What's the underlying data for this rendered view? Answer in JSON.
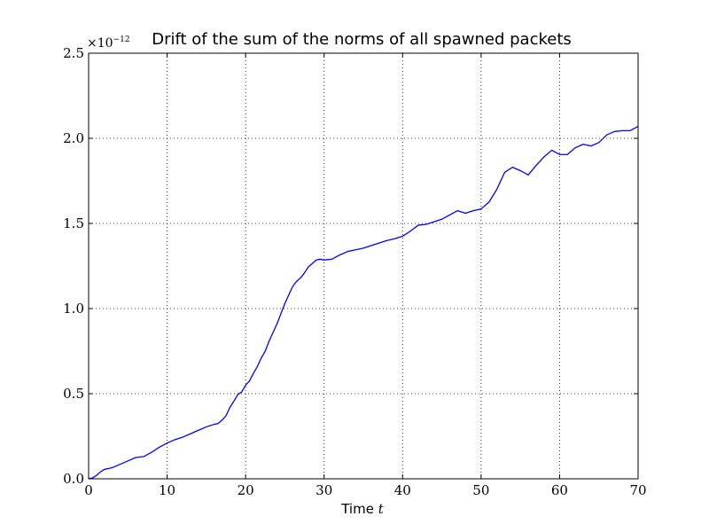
{
  "chart_data": {
    "type": "line",
    "title": "Drift of the sum of the norms of all spawned packets",
    "xlabel": "Time",
    "xlabel_var": "t",
    "ylabel": "",
    "y_offset_base": "×10",
    "y_offset_exp": "−12",
    "xlim": [
      0,
      70
    ],
    "ylim": [
      0,
      2.5
    ],
    "x_ticks": [
      0,
      10,
      20,
      30,
      40,
      50,
      60,
      70
    ],
    "x_tick_labels": [
      "0",
      "10",
      "20",
      "30",
      "40",
      "50",
      "60",
      "70"
    ],
    "y_ticks": [
      0,
      0.5,
      1.0,
      1.5,
      2.0,
      2.5
    ],
    "y_tick_labels": [
      "0.0",
      "0.5",
      "1.0",
      "1.5",
      "2.0",
      "2.5"
    ],
    "grid": true,
    "grid_style": "dotted",
    "series": [
      {
        "color": "#0000ff",
        "x": [
          0,
          0.5,
          1,
          1.5,
          2,
          3,
          4,
          5,
          6,
          7,
          8,
          9,
          10,
          11,
          12,
          13,
          14,
          15,
          16,
          16.5,
          17,
          17.5,
          18,
          18.5,
          19,
          19.5,
          20,
          20.5,
          21,
          21.5,
          22,
          22.5,
          23,
          23.5,
          24,
          24.5,
          25,
          25.5,
          26,
          26.5,
          27,
          27.5,
          28,
          28.5,
          29,
          29.5,
          30,
          31,
          32,
          33,
          34,
          35,
          36,
          37,
          38,
          39,
          40,
          41,
          42,
          43,
          44,
          45,
          46,
          47,
          48,
          49,
          50,
          51,
          52,
          53,
          54,
          55,
          56,
          57,
          58,
          59,
          60,
          61,
          62,
          63,
          64,
          65,
          66,
          67,
          68,
          69,
          70
        ],
        "y": [
          0.0,
          0.005,
          0.02,
          0.04,
          0.055,
          0.065,
          0.085,
          0.105,
          0.125,
          0.13,
          0.155,
          0.185,
          0.21,
          0.23,
          0.245,
          0.265,
          0.285,
          0.305,
          0.32,
          0.325,
          0.345,
          0.37,
          0.42,
          0.455,
          0.495,
          0.51,
          0.55,
          0.575,
          0.62,
          0.66,
          0.71,
          0.75,
          0.81,
          0.86,
          0.91,
          0.97,
          1.03,
          1.08,
          1.13,
          1.16,
          1.18,
          1.21,
          1.245,
          1.265,
          1.285,
          1.29,
          1.285,
          1.29,
          1.315,
          1.335,
          1.345,
          1.355,
          1.37,
          1.385,
          1.4,
          1.41,
          1.425,
          1.455,
          1.49,
          1.495,
          1.51,
          1.525,
          1.55,
          1.575,
          1.56,
          1.575,
          1.585,
          1.625,
          1.7,
          1.8,
          1.83,
          1.81,
          1.785,
          1.84,
          1.89,
          1.93,
          1.905,
          1.905,
          1.945,
          1.965,
          1.955,
          1.975,
          2.02,
          2.04,
          2.045,
          2.045,
          2.07
        ]
      }
    ]
  }
}
